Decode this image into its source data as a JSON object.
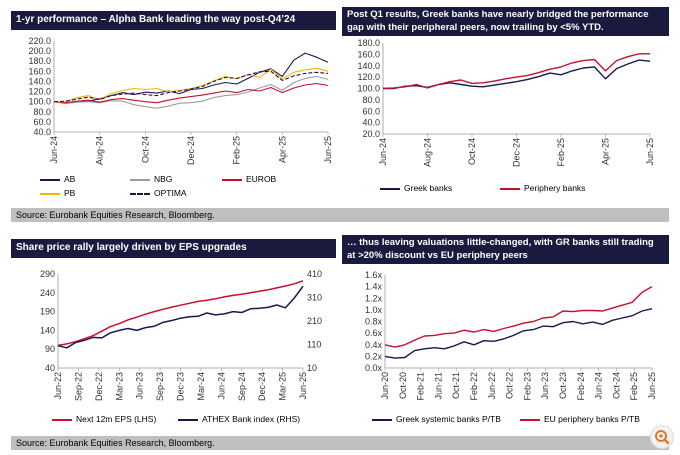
{
  "panels": {
    "p1": {
      "title": "1-yr performance – Alpha Bank leading the way post-Q4’24"
    },
    "p2": {
      "title": "Post Q1 results, Greek banks have nearly bridged the performance gap with their peripheral peers, now trailing by <5% YTD."
    },
    "p3": {
      "title": "Share price rally largely driven by EPS upgrades"
    },
    "p4": {
      "title": "… thus leaving valuations little-changed, with GR banks still trading at >20% discount vs EU periphery peers"
    }
  },
  "source1": "Source: Eurobank Equities Research, Bloomberg.",
  "source2": "Source: Eurobank Equities Research, Bloomberg.",
  "colors": {
    "navy": "#1a1a4e",
    "crimson": "#c8102e",
    "gold": "#f2b705",
    "grey": "#9e9e9e",
    "title_bg": "#1a1a3e"
  },
  "chart_data": [
    {
      "type": "line",
      "title": "1-yr performance – Alpha Bank leading the way post-Q4’24",
      "ylim": [
        40,
        220
      ],
      "yticks": [
        "40.0",
        "60.0",
        "80.0",
        "100.0",
        "120.0",
        "140.0",
        "160.0",
        "180.0",
        "200.0",
        "220.0"
      ],
      "xticks": [
        "Jun-24",
        "Aug-24",
        "Oct-24",
        "Dec-24",
        "Feb-25",
        "Apr-25",
        "Jun-25"
      ],
      "series": [
        {
          "name": "AB",
          "color": "#1a1a4e",
          "dash": "",
          "values": [
            100,
            97,
            100,
            101,
            106,
            112,
            118,
            114,
            119,
            117,
            121,
            116,
            124,
            126,
            133,
            138,
            135,
            146,
            158,
            165,
            150,
            182,
            196,
            188,
            178
          ]
        },
        {
          "name": "NBG",
          "color": "#9e9e9e",
          "dash": "",
          "values": [
            100,
            96,
            99,
            100,
            98,
            102,
            101,
            94,
            90,
            87,
            91,
            97,
            98,
            101,
            108,
            112,
            114,
            119,
            127,
            134,
            122,
            138,
            146,
            150,
            144
          ]
        },
        {
          "name": "EUROB",
          "color": "#c8102e",
          "dash": "",
          "values": [
            100,
            98,
            101,
            103,
            99,
            104,
            106,
            103,
            100,
            98,
            103,
            107,
            110,
            113,
            117,
            121,
            118,
            124,
            121,
            128,
            118,
            127,
            133,
            136,
            132
          ]
        },
        {
          "name": "PB",
          "color": "#f2b705",
          "dash": "",
          "values": [
            100,
            100,
            108,
            112,
            104,
            116,
            122,
            126,
            124,
            126,
            120,
            122,
            126,
            132,
            141,
            150,
            145,
            154,
            148,
            164,
            145,
            158,
            163,
            166,
            160
          ]
        },
        {
          "name": "OPTIMA",
          "color": "#2b1040",
          "dash": "4,2",
          "values": [
            100,
            101,
            105,
            109,
            104,
            112,
            115,
            117,
            114,
            112,
            118,
            121,
            125,
            130,
            140,
            148,
            146,
            153,
            159,
            160,
            142,
            151,
            156,
            158,
            156
          ]
        }
      ]
    },
    {
      "type": "line",
      "title": "Post Q1 results, Greek banks have nearly bridged the performance gap with their peripheral peers, now trailing by <5% YTD.",
      "ylim": [
        20,
        180
      ],
      "yticks": [
        "20.0",
        "40.0",
        "60.0",
        "80.0",
        "100.0",
        "120.0",
        "140.0",
        "160.0",
        "180.0"
      ],
      "xticks": [
        "Jun-24",
        "Aug-24",
        "Oct-24",
        "Dec-24",
        "Feb-25",
        "Apr-25",
        "Jun-25"
      ],
      "series": [
        {
          "name": "Greek banks",
          "color": "#1a1a4e",
          "dash": "",
          "values": [
            100,
            100,
            104,
            105,
            102,
            107,
            110,
            107,
            104,
            103,
            106,
            109,
            112,
            116,
            121,
            127,
            124,
            131,
            136,
            138,
            117,
            135,
            143,
            150,
            148
          ]
        },
        {
          "name": "Periphery banks",
          "color": "#c8102e",
          "dash": "",
          "values": [
            100,
            101,
            103,
            107,
            101,
            107,
            112,
            115,
            109,
            110,
            113,
            117,
            120,
            123,
            128,
            134,
            138,
            145,
            149,
            151,
            131,
            149,
            156,
            161,
            161
          ]
        }
      ]
    },
    {
      "type": "line",
      "title": "Share price rally largely driven by EPS upgrades",
      "ylim_left": [
        40,
        290
      ],
      "ylim_right": [
        10,
        410
      ],
      "yticks_left": [
        "40",
        "90",
        "140",
        "190",
        "240",
        "290"
      ],
      "yticks_right": [
        "10",
        "110",
        "210",
        "310",
        "410"
      ],
      "xticks": [
        "Jun-22",
        "Sep-22",
        "Dec-22",
        "Mar-23",
        "Jun-23",
        "Sep-23",
        "Dec-23",
        "Mar-24",
        "Jun-24",
        "Sep-24",
        "Dec-24",
        "Mar-25",
        "Jun-25"
      ],
      "series": [
        {
          "name": "Next 12m EPS (LHS)",
          "color": "#c8102e",
          "axis": "left",
          "values": [
            100,
            104,
            110,
            118,
            126,
            138,
            150,
            158,
            168,
            175,
            183,
            190,
            196,
            202,
            207,
            212,
            217,
            220,
            224,
            229,
            233,
            236,
            240,
            244,
            248,
            253,
            258,
            264,
            272
          ]
        },
        {
          "name": "ATHEX Bank index (RHS)",
          "color": "#1a1a4e",
          "axis": "right",
          "values": [
            105,
            96,
            118,
            128,
            140,
            138,
            160,
            170,
            178,
            170,
            182,
            188,
            204,
            212,
            222,
            228,
            230,
            244,
            236,
            240,
            250,
            246,
            262,
            264,
            268,
            278,
            266,
            308,
            358
          ]
        }
      ]
    },
    {
      "type": "line",
      "title": "… thus leaving valuations little-changed, with GR banks still trading at >20% discount vs EU periphery peers",
      "ylim": [
        0,
        1.6
      ],
      "yticks": [
        "0.0x",
        "0.2x",
        "0.4x",
        "0.6x",
        "0.8x",
        "1.0x",
        "1.2x",
        "1.4x",
        "1.6x"
      ],
      "xticks": [
        "Jun-20",
        "Oct-20",
        "Feb-21",
        "Jun-21",
        "Oct-21",
        "Feb-22",
        "Jun-22",
        "Oct-22",
        "Feb-23",
        "Jun-23",
        "Oct-23",
        "Feb-24",
        "Jun-24",
        "Oct-24",
        "Feb-25",
        "Jun-25"
      ],
      "series": [
        {
          "name": "Greek systemic banks P/TB",
          "color": "#1a1a4e",
          "values": [
            0.2,
            0.17,
            0.18,
            0.3,
            0.33,
            0.35,
            0.33,
            0.38,
            0.45,
            0.4,
            0.47,
            0.46,
            0.5,
            0.56,
            0.64,
            0.66,
            0.72,
            0.71,
            0.78,
            0.8,
            0.76,
            0.79,
            0.75,
            0.82,
            0.86,
            0.9,
            0.98,
            1.02
          ]
        },
        {
          "name": "EU periphery banks P/TB",
          "color": "#c8102e",
          "values": [
            0.4,
            0.36,
            0.4,
            0.48,
            0.55,
            0.56,
            0.59,
            0.6,
            0.65,
            0.62,
            0.66,
            0.63,
            0.68,
            0.72,
            0.77,
            0.8,
            0.86,
            0.88,
            0.98,
            0.97,
            0.99,
            0.99,
            0.98,
            1.03,
            1.08,
            1.13,
            1.3,
            1.4
          ]
        }
      ]
    }
  ]
}
